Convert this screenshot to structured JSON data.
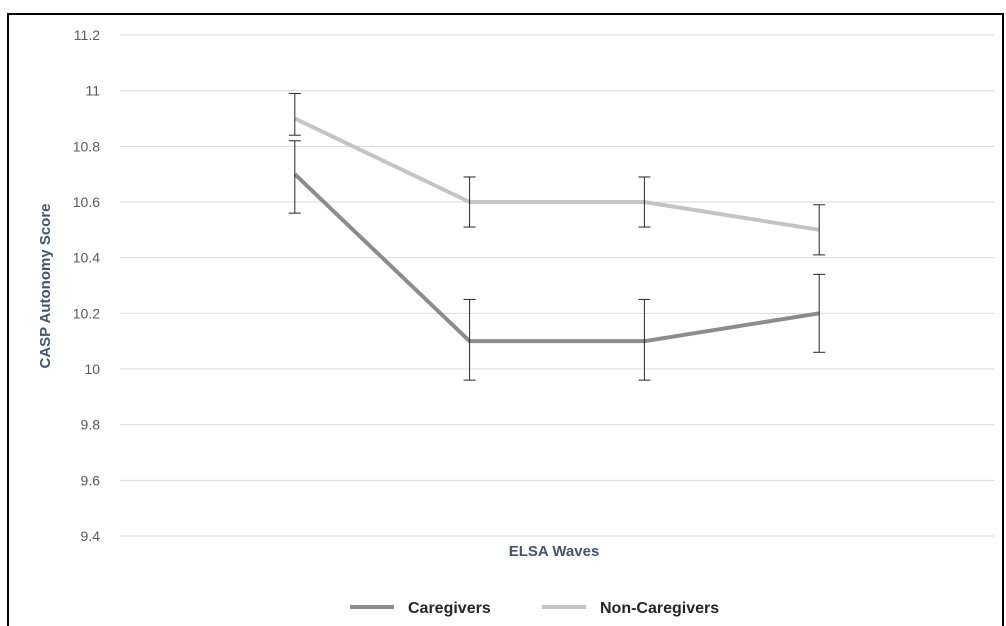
{
  "chart_data": {
    "type": "line",
    "title": "",
    "xlabel": "ELSA Waves",
    "ylabel": "CASP Autonomy Score",
    "ylim": [
      9.4,
      11.2
    ],
    "yticks": [
      "9.4",
      "9.6",
      "9.8",
      "10",
      "10.2",
      "10.4",
      "10.6",
      "10.8",
      "11",
      "11.2"
    ],
    "x": [
      1,
      2,
      3,
      4
    ],
    "grid": true,
    "legend_position": "bottom",
    "series": [
      {
        "name": "Caregivers",
        "color": "#8c8c8c",
        "values": [
          10.7,
          10.1,
          10.1,
          10.2
        ],
        "error_low": [
          10.56,
          9.96,
          9.96,
          10.06
        ],
        "error_high": [
          10.82,
          10.25,
          10.25,
          10.34
        ]
      },
      {
        "name": "Non-Caregivers",
        "color": "#c4c4c4",
        "values": [
          10.9,
          10.6,
          10.6,
          10.5
        ],
        "error_low": [
          10.84,
          10.51,
          10.51,
          10.41
        ],
        "error_high": [
          10.99,
          10.69,
          10.69,
          10.59
        ]
      }
    ]
  }
}
